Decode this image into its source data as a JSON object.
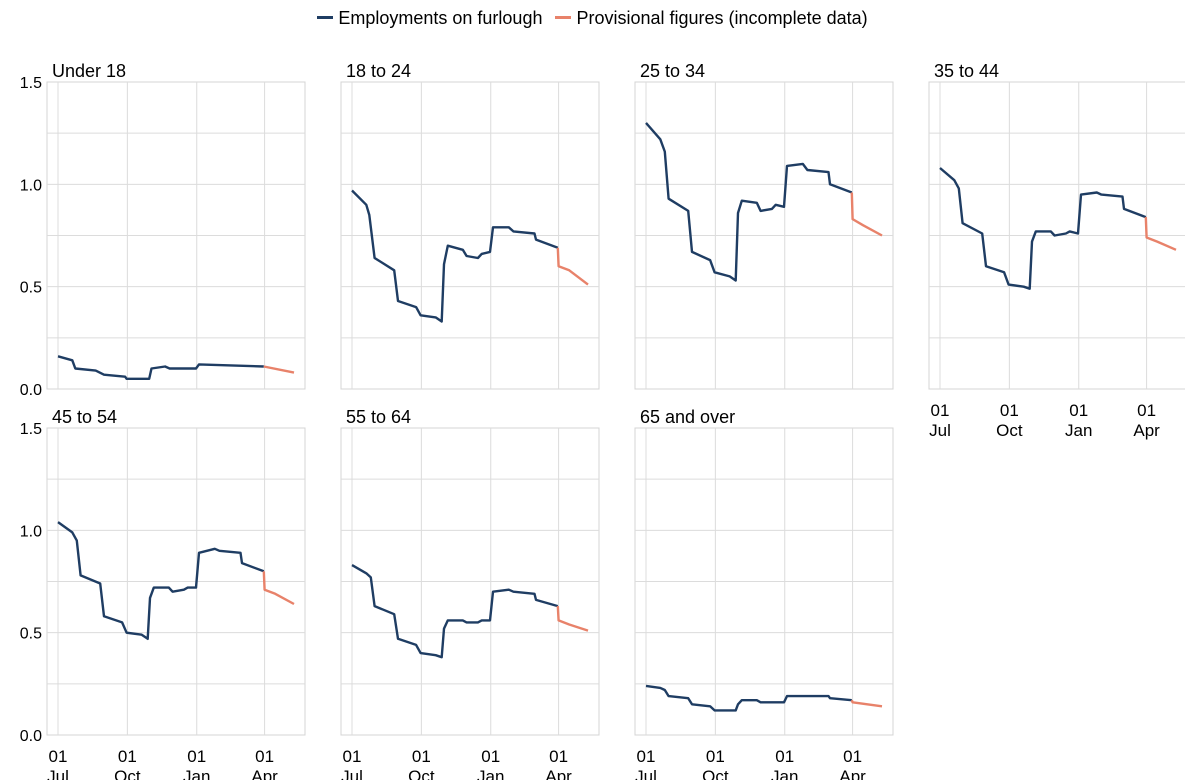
{
  "legend": {
    "series1": "Employments on furlough",
    "series2": "Provisional figures (incomplete data)"
  },
  "colors": {
    "main": "#1f3d63",
    "provisional": "#e8826a",
    "grid": "#dcdcdc",
    "border": "#d4d4d4"
  },
  "chart_data": {
    "type": "line",
    "ylim": [
      0,
      1.5
    ],
    "yticks": [
      "0.0",
      "0.5",
      "1.0",
      "1.5"
    ],
    "xticks": [
      {
        "day": "01",
        "month": "Jul"
      },
      {
        "day": "01",
        "month": "Oct"
      },
      {
        "day": "01",
        "month": "Jan"
      },
      {
        "day": "01",
        "month": "Apr"
      }
    ],
    "x_range": [
      "2020-07-01",
      "2021-05-10"
    ],
    "provisional_start": "2021-04-01",
    "panels": [
      {
        "title": "Under 18",
        "points": [
          [
            "2020-07-01",
            0.16
          ],
          [
            "2020-07-20",
            0.14
          ],
          [
            "2020-07-24",
            0.1
          ],
          [
            "2020-08-20",
            0.09
          ],
          [
            "2020-08-31",
            0.07
          ],
          [
            "2020-09-28",
            0.06
          ],
          [
            "2020-09-30",
            0.05
          ],
          [
            "2020-10-30",
            0.05
          ],
          [
            "2020-11-02",
            0.1
          ],
          [
            "2020-11-20",
            0.11
          ],
          [
            "2020-11-26",
            0.1
          ],
          [
            "2020-12-31",
            0.1
          ],
          [
            "2021-01-04",
            0.12
          ],
          [
            "2021-03-31",
            0.11
          ],
          [
            "2021-05-10",
            0.08
          ]
        ]
      },
      {
        "title": "18 to 24",
        "points": [
          [
            "2020-07-01",
            0.97
          ],
          [
            "2020-07-20",
            0.9
          ],
          [
            "2020-07-24",
            0.85
          ],
          [
            "2020-07-31",
            0.64
          ],
          [
            "2020-08-26",
            0.58
          ],
          [
            "2020-08-31",
            0.43
          ],
          [
            "2020-09-24",
            0.4
          ],
          [
            "2020-09-30",
            0.36
          ],
          [
            "2020-10-20",
            0.35
          ],
          [
            "2020-10-28",
            0.33
          ],
          [
            "2020-10-31",
            0.61
          ],
          [
            "2020-11-05",
            0.7
          ],
          [
            "2020-11-25",
            0.68
          ],
          [
            "2020-11-30",
            0.65
          ],
          [
            "2020-12-15",
            0.64
          ],
          [
            "2020-12-20",
            0.66
          ],
          [
            "2020-12-31",
            0.67
          ],
          [
            "2021-01-04",
            0.79
          ],
          [
            "2021-01-25",
            0.79
          ],
          [
            "2021-01-31",
            0.77
          ],
          [
            "2021-02-28",
            0.76
          ],
          [
            "2021-03-02",
            0.73
          ],
          [
            "2021-03-31",
            0.69
          ],
          [
            "2021-04-01",
            0.6
          ],
          [
            "2021-04-15",
            0.58
          ],
          [
            "2021-05-10",
            0.51
          ]
        ]
      },
      {
        "title": "25 to 34",
        "points": [
          [
            "2020-07-01",
            1.3
          ],
          [
            "2020-07-20",
            1.22
          ],
          [
            "2020-07-26",
            1.16
          ],
          [
            "2020-07-31",
            0.93
          ],
          [
            "2020-08-26",
            0.87
          ],
          [
            "2020-08-31",
            0.67
          ],
          [
            "2020-09-24",
            0.63
          ],
          [
            "2020-09-30",
            0.57
          ],
          [
            "2020-10-20",
            0.55
          ],
          [
            "2020-10-28",
            0.53
          ],
          [
            "2020-10-31",
            0.86
          ],
          [
            "2020-11-05",
            0.92
          ],
          [
            "2020-11-25",
            0.91
          ],
          [
            "2020-11-30",
            0.87
          ],
          [
            "2020-12-15",
            0.88
          ],
          [
            "2020-12-20",
            0.9
          ],
          [
            "2020-12-31",
            0.89
          ],
          [
            "2021-01-04",
            1.09
          ],
          [
            "2021-01-25",
            1.1
          ],
          [
            "2021-01-31",
            1.07
          ],
          [
            "2021-02-28",
            1.06
          ],
          [
            "2021-03-02",
            1.0
          ],
          [
            "2021-03-31",
            0.96
          ],
          [
            "2021-04-01",
            0.83
          ],
          [
            "2021-04-15",
            0.8
          ],
          [
            "2021-05-10",
            0.75
          ]
        ]
      },
      {
        "title": "35 to 44",
        "points": [
          [
            "2020-07-01",
            1.08
          ],
          [
            "2020-07-20",
            1.02
          ],
          [
            "2020-07-26",
            0.98
          ],
          [
            "2020-07-31",
            0.81
          ],
          [
            "2020-08-26",
            0.76
          ],
          [
            "2020-08-31",
            0.6
          ],
          [
            "2020-09-24",
            0.57
          ],
          [
            "2020-09-30",
            0.51
          ],
          [
            "2020-10-20",
            0.5
          ],
          [
            "2020-10-28",
            0.49
          ],
          [
            "2020-10-31",
            0.72
          ],
          [
            "2020-11-05",
            0.77
          ],
          [
            "2020-11-25",
            0.77
          ],
          [
            "2020-11-30",
            0.75
          ],
          [
            "2020-12-15",
            0.76
          ],
          [
            "2020-12-20",
            0.77
          ],
          [
            "2020-12-31",
            0.76
          ],
          [
            "2021-01-04",
            0.95
          ],
          [
            "2021-01-25",
            0.96
          ],
          [
            "2021-01-31",
            0.95
          ],
          [
            "2021-02-28",
            0.94
          ],
          [
            "2021-03-02",
            0.88
          ],
          [
            "2021-03-31",
            0.84
          ],
          [
            "2021-04-01",
            0.74
          ],
          [
            "2021-04-15",
            0.72
          ],
          [
            "2021-05-10",
            0.68
          ]
        ]
      },
      {
        "title": "45 to 54",
        "points": [
          [
            "2020-07-01",
            1.04
          ],
          [
            "2020-07-20",
            0.99
          ],
          [
            "2020-07-26",
            0.95
          ],
          [
            "2020-07-31",
            0.78
          ],
          [
            "2020-08-26",
            0.74
          ],
          [
            "2020-08-31",
            0.58
          ],
          [
            "2020-09-24",
            0.55
          ],
          [
            "2020-09-30",
            0.5
          ],
          [
            "2020-10-20",
            0.49
          ],
          [
            "2020-10-28",
            0.47
          ],
          [
            "2020-10-31",
            0.67
          ],
          [
            "2020-11-05",
            0.72
          ],
          [
            "2020-11-25",
            0.72
          ],
          [
            "2020-11-30",
            0.7
          ],
          [
            "2020-12-15",
            0.71
          ],
          [
            "2020-12-20",
            0.72
          ],
          [
            "2020-12-31",
            0.72
          ],
          [
            "2021-01-04",
            0.89
          ],
          [
            "2021-01-25",
            0.91
          ],
          [
            "2021-01-31",
            0.9
          ],
          [
            "2021-02-28",
            0.89
          ],
          [
            "2021-03-02",
            0.84
          ],
          [
            "2021-03-31",
            0.8
          ],
          [
            "2021-04-01",
            0.71
          ],
          [
            "2021-04-15",
            0.69
          ],
          [
            "2021-05-10",
            0.64
          ]
        ]
      },
      {
        "title": "55 to 64",
        "points": [
          [
            "2020-07-01",
            0.83
          ],
          [
            "2020-07-20",
            0.79
          ],
          [
            "2020-07-26",
            0.77
          ],
          [
            "2020-07-31",
            0.63
          ],
          [
            "2020-08-26",
            0.59
          ],
          [
            "2020-08-31",
            0.47
          ],
          [
            "2020-09-24",
            0.44
          ],
          [
            "2020-09-30",
            0.4
          ],
          [
            "2020-10-20",
            0.39
          ],
          [
            "2020-10-28",
            0.38
          ],
          [
            "2020-10-31",
            0.52
          ],
          [
            "2020-11-05",
            0.56
          ],
          [
            "2020-11-25",
            0.56
          ],
          [
            "2020-11-30",
            0.55
          ],
          [
            "2020-12-15",
            0.55
          ],
          [
            "2020-12-20",
            0.56
          ],
          [
            "2020-12-31",
            0.56
          ],
          [
            "2021-01-04",
            0.7
          ],
          [
            "2021-01-25",
            0.71
          ],
          [
            "2021-01-31",
            0.7
          ],
          [
            "2021-02-28",
            0.69
          ],
          [
            "2021-03-02",
            0.66
          ],
          [
            "2021-03-31",
            0.63
          ],
          [
            "2021-04-01",
            0.56
          ],
          [
            "2021-04-15",
            0.54
          ],
          [
            "2021-05-10",
            0.51
          ]
        ]
      },
      {
        "title": "65 and over",
        "points": [
          [
            "2020-07-01",
            0.24
          ],
          [
            "2020-07-20",
            0.23
          ],
          [
            "2020-07-26",
            0.22
          ],
          [
            "2020-07-31",
            0.19
          ],
          [
            "2020-08-26",
            0.18
          ],
          [
            "2020-08-31",
            0.15
          ],
          [
            "2020-09-24",
            0.14
          ],
          [
            "2020-09-30",
            0.12
          ],
          [
            "2020-10-28",
            0.12
          ],
          [
            "2020-10-31",
            0.15
          ],
          [
            "2020-11-05",
            0.17
          ],
          [
            "2020-11-25",
            0.17
          ],
          [
            "2020-11-30",
            0.16
          ],
          [
            "2020-12-31",
            0.16
          ],
          [
            "2021-01-04",
            0.19
          ],
          [
            "2021-01-31",
            0.19
          ],
          [
            "2021-02-28",
            0.19
          ],
          [
            "2021-03-02",
            0.18
          ],
          [
            "2021-03-31",
            0.17
          ],
          [
            "2021-04-01",
            0.16
          ],
          [
            "2021-05-10",
            0.14
          ]
        ]
      }
    ]
  }
}
